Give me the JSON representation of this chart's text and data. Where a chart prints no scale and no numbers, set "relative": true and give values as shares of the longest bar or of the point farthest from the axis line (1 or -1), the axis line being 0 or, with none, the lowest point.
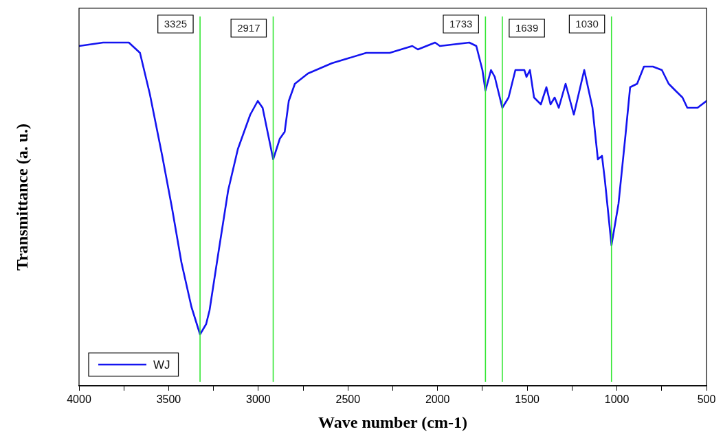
{
  "chart_data": {
    "type": "line",
    "xlabel": "Wave number (cm-1)",
    "ylabel": "Transmittance (a. u.)",
    "relative": true,
    "xlim": [
      4000,
      500
    ],
    "xticks": [
      4000,
      {
        "value": 3750,
        "label": null
      },
      3500,
      {
        "value": 3250,
        "label": null
      },
      3000,
      {
        "value": 2750,
        "label": null
      },
      2500,
      {
        "value": 2250,
        "label": null
      },
      2000,
      {
        "value": 1750,
        "label": null
      },
      1500,
      {
        "value": 1250,
        "label": null
      },
      1000,
      {
        "value": 750,
        "label": null
      },
      500
    ],
    "grid": false,
    "legend": "bottom left",
    "marker": "none",
    "line_style": "solid",
    "series": [
      {
        "name": "WJ",
        "color": "#1414f0",
        "x": [
          4000,
          3866,
          3722,
          3660,
          3605,
          3536,
          3482,
          3429,
          3373,
          3325,
          3291,
          3272,
          3222,
          3168,
          3114,
          3045,
          3003,
          2976,
          2917,
          2880,
          2853,
          2830,
          2796,
          2723,
          2589,
          2398,
          2267,
          2141,
          2110,
          2014,
          1987,
          1823,
          1784,
          1750,
          1733,
          1702,
          1681,
          1639,
          1604,
          1566,
          1516,
          1504,
          1485,
          1462,
          1424,
          1393,
          1370,
          1347,
          1324,
          1286,
          1240,
          1182,
          1136,
          1106,
          1083,
          1067,
          1030,
          991,
          952,
          926,
          887,
          849,
          799,
          749,
          711,
          673,
          634,
          607,
          569,
          550,
          500
        ],
        "values": [
          0.99,
          1.0,
          1.0,
          0.97,
          0.85,
          0.67,
          0.52,
          0.36,
          0.23,
          0.15,
          0.18,
          0.22,
          0.39,
          0.57,
          0.69,
          0.79,
          0.83,
          0.81,
          0.66,
          0.72,
          0.74,
          0.83,
          0.88,
          0.91,
          0.94,
          0.97,
          0.97,
          0.99,
          0.98,
          1.0,
          0.99,
          1.0,
          0.99,
          0.92,
          0.86,
          0.92,
          0.9,
          0.81,
          0.84,
          0.92,
          0.92,
          0.9,
          0.92,
          0.84,
          0.82,
          0.87,
          0.82,
          0.84,
          0.81,
          0.88,
          0.79,
          0.92,
          0.81,
          0.66,
          0.67,
          0.6,
          0.41,
          0.53,
          0.73,
          0.87,
          0.88,
          0.93,
          0.93,
          0.92,
          0.88,
          0.86,
          0.84,
          0.81,
          0.81,
          0.81,
          0.83
        ]
      }
    ],
    "ref_lines": [
      {
        "axis": "x",
        "value": 3325,
        "label": "3325",
        "color": "#33e633"
      },
      {
        "axis": "x",
        "value": 2917,
        "label": "2917",
        "color": "#33e633"
      },
      {
        "axis": "x",
        "value": 1733,
        "label": "1733",
        "color": "#33e633"
      },
      {
        "axis": "x",
        "value": 1639,
        "label": "1639",
        "color": "#33e633"
      },
      {
        "axis": "x",
        "value": 1030,
        "label": "1030",
        "color": "#33e633"
      }
    ]
  }
}
